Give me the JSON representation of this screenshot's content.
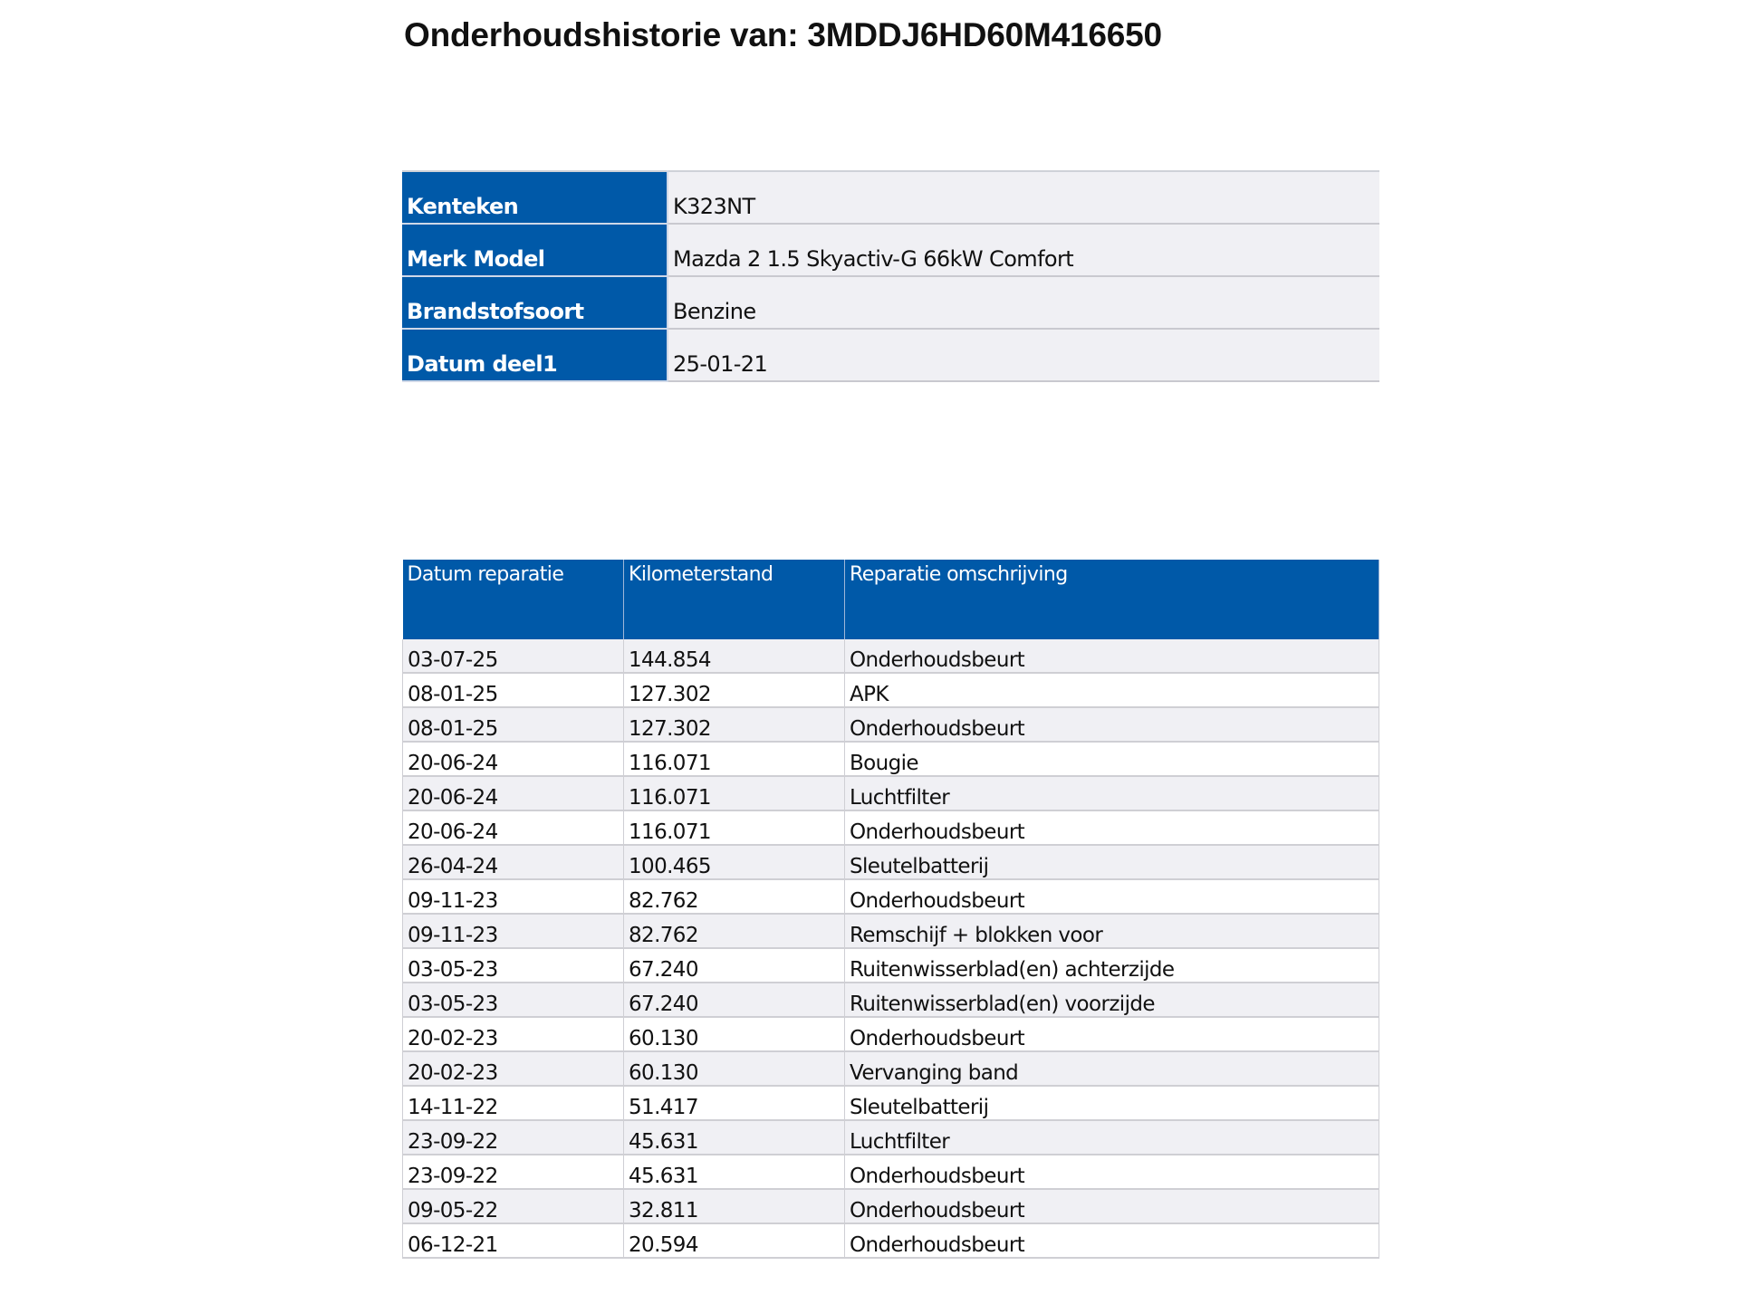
{
  "title": "Onderhoudshistorie van: 3MDDJ6HD60M416650",
  "info": [
    {
      "label": "Kenteken",
      "value": "K323NT"
    },
    {
      "label": "Merk Model",
      "value": "Mazda 2 1.5 Skyactiv-G 66kW Comfort"
    },
    {
      "label": "Brandstofsoort",
      "value": "Benzine"
    },
    {
      "label": "Datum deel1",
      "value": "25-01-21"
    }
  ],
  "history": {
    "columns": [
      "Datum reparatie",
      "Kilometerstand",
      "Reparatie omschrijving"
    ],
    "rows": [
      [
        "03-07-25",
        "144.854",
        "Onderhoudsbeurt"
      ],
      [
        "08-01-25",
        "127.302",
        "APK"
      ],
      [
        "08-01-25",
        "127.302",
        "Onderhoudsbeurt"
      ],
      [
        "20-06-24",
        "116.071",
        "Bougie"
      ],
      [
        "20-06-24",
        "116.071",
        "Luchtfilter"
      ],
      [
        "20-06-24",
        "116.071",
        "Onderhoudsbeurt"
      ],
      [
        "26-04-24",
        "100.465",
        "Sleutelbatterij"
      ],
      [
        "09-11-23",
        "82.762",
        "Onderhoudsbeurt"
      ],
      [
        "09-11-23",
        "82.762",
        "Remschijf + blokken voor"
      ],
      [
        "03-05-23",
        "67.240",
        "Ruitenwisserblad(en) achterzijde"
      ],
      [
        "03-05-23",
        "67.240",
        "Ruitenwisserblad(en) voorzijde"
      ],
      [
        "20-02-23",
        "60.130",
        "Onderhoudsbeurt"
      ],
      [
        "20-02-23",
        "60.130",
        "Vervanging band"
      ],
      [
        "14-11-22",
        "51.417",
        "Sleutelbatterij"
      ],
      [
        "23-09-22",
        "45.631",
        "Luchtfilter"
      ],
      [
        "23-09-22",
        "45.631",
        "Onderhoudsbeurt"
      ],
      [
        "09-05-22",
        "32.811",
        "Onderhoudsbeurt"
      ],
      [
        "06-12-21",
        "20.594",
        "Onderhoudsbeurt"
      ]
    ]
  },
  "colors": {
    "header_blue": "#0059a8",
    "row_alt": "#f0f0f4"
  }
}
